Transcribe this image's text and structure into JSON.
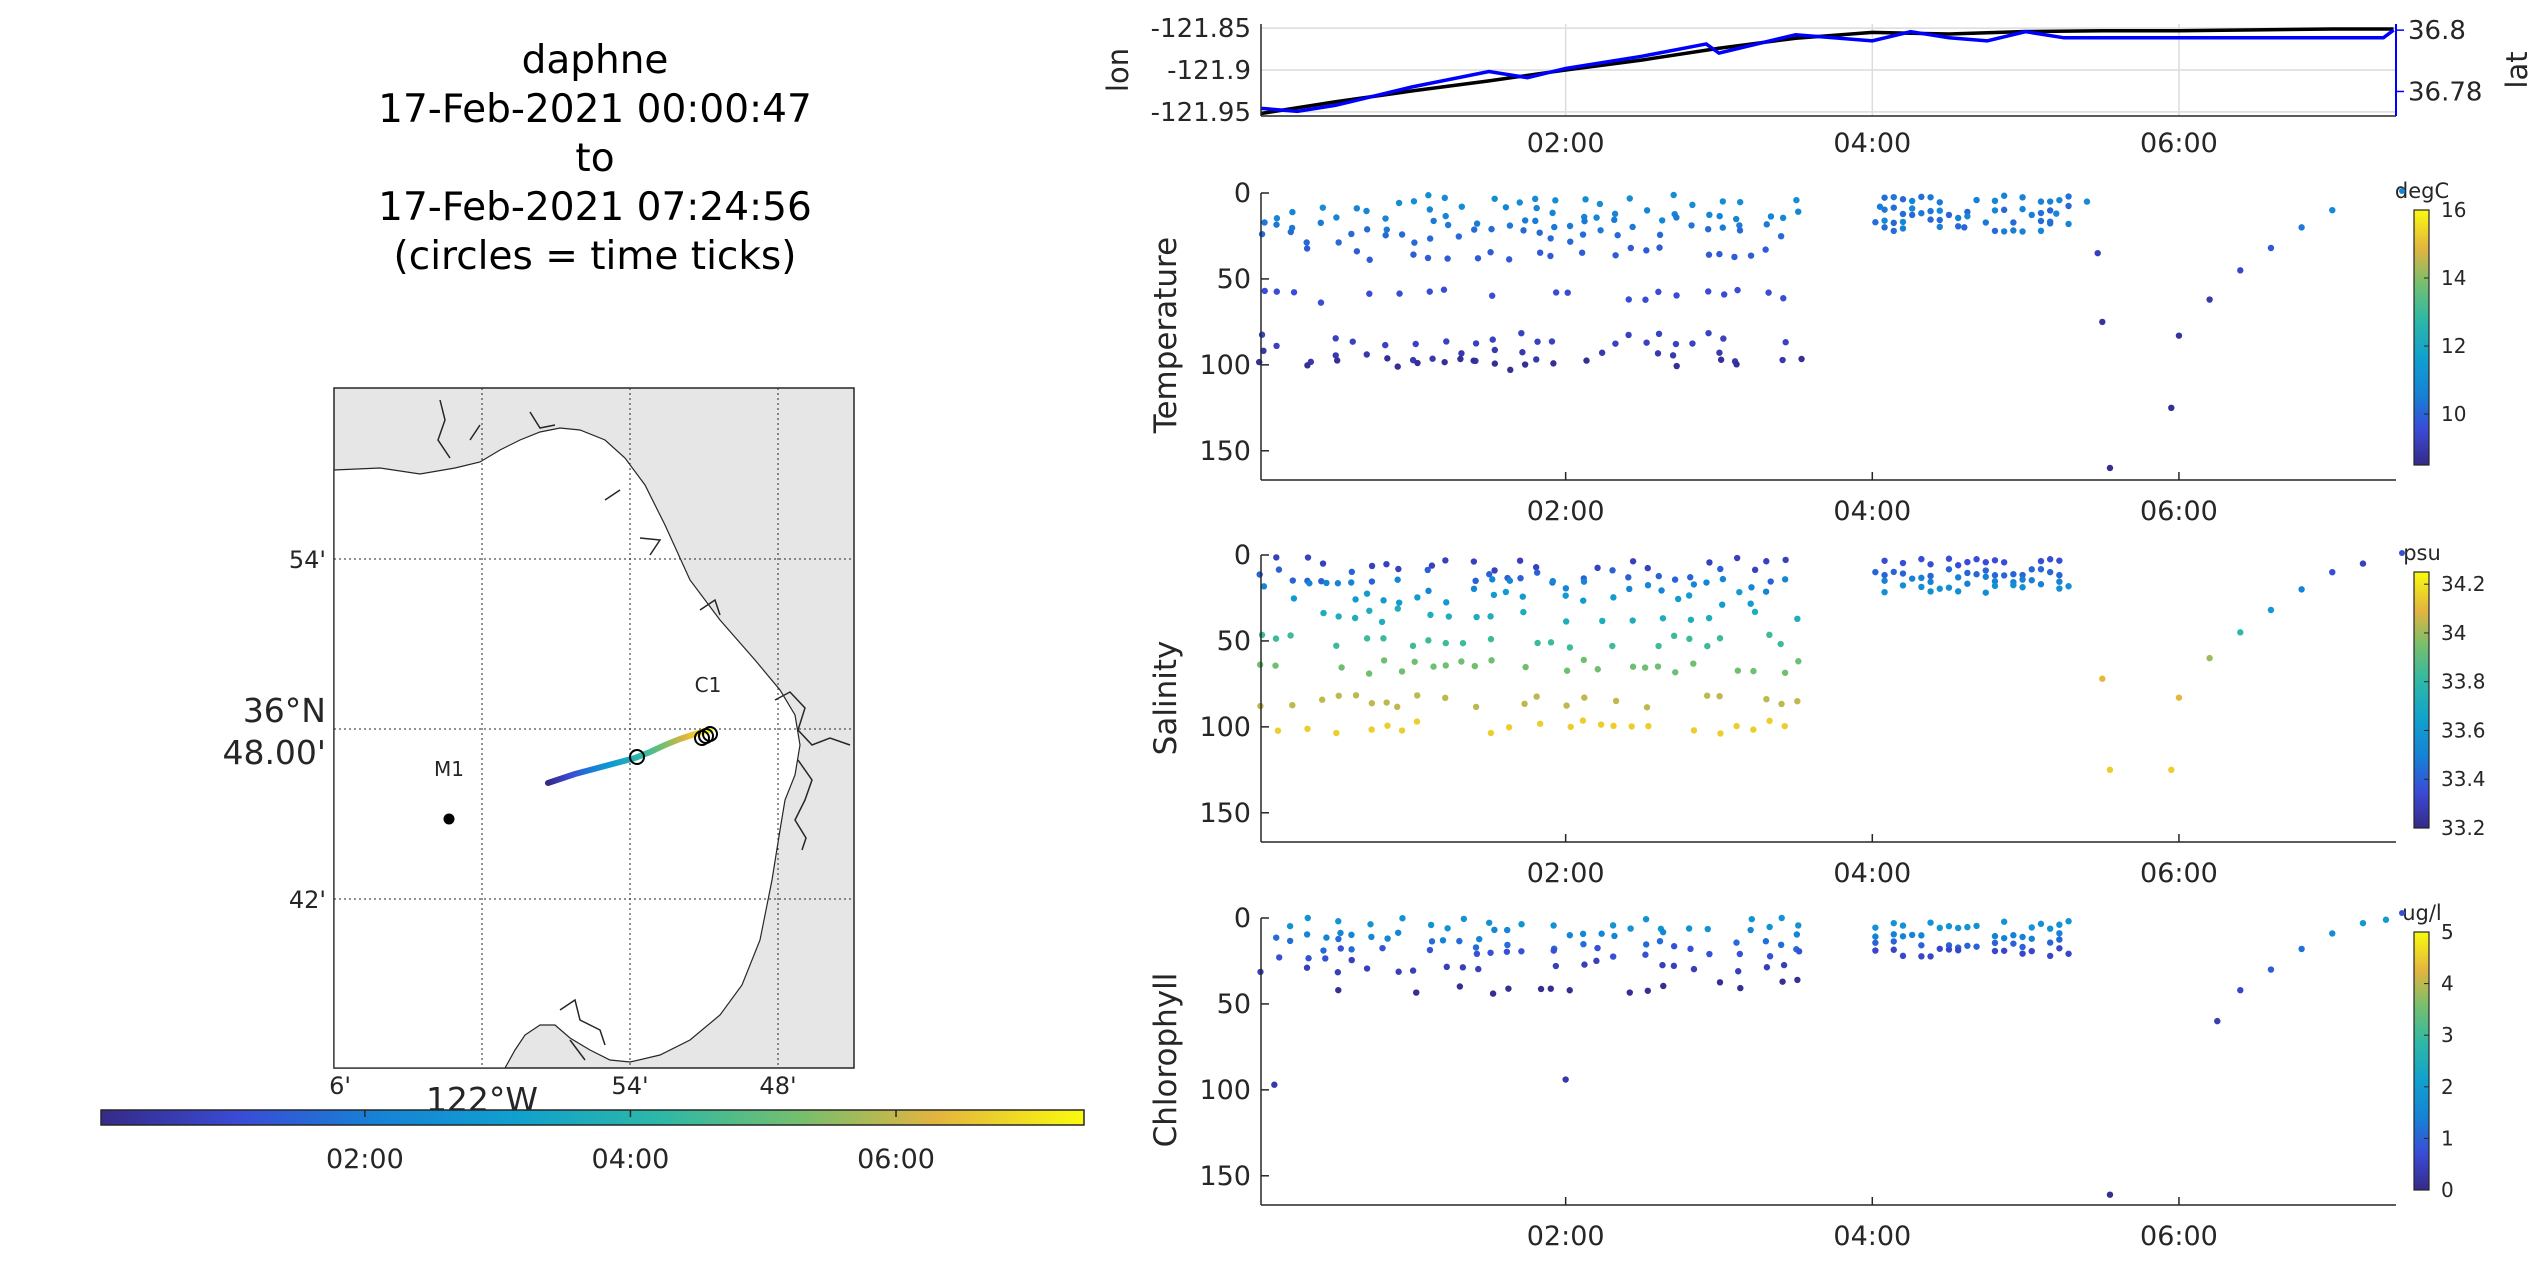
{
  "title_lines": [
    "daphne",
    "17-Feb-2021 00:00:47",
    "to",
    "17-Feb-2021 07:24:56",
    "(circles = time ticks)"
  ],
  "chart_data": [
    {
      "type": "line",
      "panel": "position-timeseries",
      "x_type": "time",
      "xlim": [
        "00:00:47",
        "07:24:56"
      ],
      "xticks": [
        "02:00",
        "04:00",
        "06:00"
      ],
      "ylabel": "lon",
      "ylabel_right": "lat",
      "ylim": [
        -121.955,
        -121.845
      ],
      "yticks": [
        "-121.85",
        "-121.9",
        "-121.95"
      ],
      "ylim_right": [
        36.772,
        36.802
      ],
      "yticks_right": [
        "36.8",
        "36.78"
      ],
      "grid": true,
      "colors": {
        "lon": "#000000",
        "lat": "#0000ff"
      },
      "series": [
        {
          "axis": "left",
          "x": [
            "00:00:47",
            "00:30",
            "01:00",
            "01:30",
            "02:00",
            "02:30",
            "03:00",
            "03:30",
            "04:00",
            "04:30",
            "05:00",
            "05:30",
            "06:00",
            "06:30",
            "07:00",
            "07:24"
          ],
          "y": [
            -121.952,
            -121.938,
            -121.925,
            -121.913,
            -121.9,
            -121.888,
            -121.874,
            -121.862,
            -121.855,
            -121.857,
            -121.854,
            -121.853,
            -121.853,
            -121.852,
            -121.851,
            -121.851
          ]
        },
        {
          "axis": "right",
          "x": [
            "00:00:47",
            "00:15",
            "00:30",
            "01:00",
            "01:30",
            "01:45",
            "02:00",
            "02:30",
            "02:55",
            "03:00",
            "03:30",
            "04:00",
            "04:15",
            "04:30",
            "04:45",
            "05:00",
            "05:15",
            "05:30",
            "06:00",
            "06:30",
            "07:00",
            "07:20",
            "07:24"
          ],
          "y": [
            36.7745,
            36.7735,
            36.7755,
            36.7815,
            36.7865,
            36.7845,
            36.7875,
            36.7915,
            36.7955,
            36.7925,
            36.7985,
            36.7965,
            36.7995,
            36.7975,
            36.7965,
            36.7995,
            36.7975,
            36.7975,
            36.7975,
            36.7975,
            36.7975,
            36.7975,
            36.8
          ]
        }
      ]
    },
    {
      "type": "scatter",
      "panel": "temperature",
      "ylabel": "Temperature",
      "y_reversed": true,
      "ylim": [
        0,
        167
      ],
      "yticks": [
        0,
        50,
        100,
        150
      ],
      "xticks": [
        "02:00",
        "04:00",
        "06:00"
      ],
      "colorbar": {
        "label": "degC",
        "range": [
          8.5,
          16
        ],
        "ticks": [
          10,
          12,
          14,
          16
        ]
      },
      "profiles_pattern": {
        "t_start": 0.0,
        "t_end": 3.58,
        "profile_spacing_hours": 0.1,
        "depths": [
          5,
          12,
          18,
          25,
          35,
          60,
          85,
          95,
          100
        ],
        "value_range": [
          8.7,
          11.0
        ]
      },
      "points": [
        {
          "t": 4.05,
          "depth": 8,
          "v": 10.5
        },
        {
          "t": 4.6,
          "depth": 20,
          "v": 10.1
        },
        {
          "t": 5.2,
          "depth": 12,
          "v": 10.8
        },
        {
          "t": 5.4,
          "depth": 5,
          "v": 10.9
        },
        {
          "t": 5.47,
          "depth": 35,
          "v": 9.2
        },
        {
          "t": 5.5,
          "depth": 75,
          "v": 8.8
        },
        {
          "t": 5.55,
          "depth": 160,
          "v": 8.6
        },
        {
          "t": 5.95,
          "depth": 125,
          "v": 8.7
        },
        {
          "t": 6.0,
          "depth": 83,
          "v": 8.8
        },
        {
          "t": 6.2,
          "depth": 62,
          "v": 9.0
        },
        {
          "t": 6.4,
          "depth": 45,
          "v": 9.4
        },
        {
          "t": 6.6,
          "depth": 32,
          "v": 9.8
        },
        {
          "t": 6.8,
          "depth": 20,
          "v": 10.4
        },
        {
          "t": 7.0,
          "depth": 10,
          "v": 10.8
        }
      ]
    },
    {
      "type": "scatter",
      "panel": "salinity",
      "ylabel": "Salinity",
      "y_reversed": true,
      "ylim": [
        0,
        167
      ],
      "yticks": [
        0,
        50,
        100,
        150
      ],
      "xticks": [
        "02:00",
        "04:00",
        "06:00"
      ],
      "colorbar": {
        "label": "psu",
        "range": [
          33.2,
          34.25
        ],
        "ticks": [
          33.2,
          33.4,
          33.6,
          33.8,
          34,
          34.2
        ]
      },
      "profiles_pattern": {
        "t_start": 0.0,
        "t_end": 3.58,
        "profile_spacing_hours": 0.1,
        "depths": [
          5,
          12,
          18,
          25,
          35,
          50,
          65,
          85,
          100
        ],
        "value_range": [
          33.3,
          34.15
        ]
      },
      "points": [
        {
          "t": 5.5,
          "depth": 72,
          "v": 34.1
        },
        {
          "t": 5.55,
          "depth": 125,
          "v": 34.15
        },
        {
          "t": 5.95,
          "depth": 125,
          "v": 34.15
        },
        {
          "t": 6.0,
          "depth": 83,
          "v": 34.1
        },
        {
          "t": 6.2,
          "depth": 60,
          "v": 34.0
        },
        {
          "t": 6.4,
          "depth": 45,
          "v": 33.8
        },
        {
          "t": 6.6,
          "depth": 32,
          "v": 33.6
        },
        {
          "t": 6.8,
          "depth": 20,
          "v": 33.5
        },
        {
          "t": 7.0,
          "depth": 10,
          "v": 33.35
        },
        {
          "t": 7.2,
          "depth": 5,
          "v": 33.3
        }
      ]
    },
    {
      "type": "scatter",
      "panel": "chlorophyll",
      "ylabel": "Chlorophyll",
      "y_reversed": true,
      "ylim": [
        0,
        167
      ],
      "yticks": [
        0,
        50,
        100,
        150
      ],
      "xticks": [
        "02:00",
        "04:00",
        "06:00"
      ],
      "colorbar": {
        "label": "ug/l",
        "range": [
          0,
          5
        ],
        "ticks": [
          0,
          1,
          2,
          3,
          4,
          5
        ]
      },
      "profiles_pattern": {
        "t_start": 0.0,
        "t_end": 3.58,
        "profile_spacing_hours": 0.1,
        "depths": [
          3,
          10,
          15,
          20,
          28,
          40
        ],
        "value_range": [
          0.1,
          1.8
        ]
      },
      "points": [
        {
          "t": 0.1,
          "depth": 97,
          "v": 0.3
        },
        {
          "t": 2.0,
          "depth": 94,
          "v": 0.3
        },
        {
          "t": 5.55,
          "depth": 161,
          "v": 0.1
        },
        {
          "t": 6.25,
          "depth": 60,
          "v": 0.4
        },
        {
          "t": 6.4,
          "depth": 42,
          "v": 0.6
        },
        {
          "t": 6.6,
          "depth": 30,
          "v": 0.9
        },
        {
          "t": 6.8,
          "depth": 18,
          "v": 1.2
        },
        {
          "t": 7.0,
          "depth": 9,
          "v": 1.6
        },
        {
          "t": 7.2,
          "depth": 3,
          "v": 1.9
        },
        {
          "t": 7.35,
          "depth": 1,
          "v": 2.0
        }
      ]
    },
    {
      "type": "map",
      "panel": "track-map",
      "lat_labels": [
        "54'",
        "36°N 48.00'",
        "42'"
      ],
      "lon_labels": [
        "6'",
        "54'",
        "48'"
      ],
      "lon_title": "122°W",
      "markers": [
        {
          "label": "M1"
        },
        {
          "label": "C1"
        }
      ],
      "track_colorbar_ticks": [
        "02:00",
        "04:00",
        "06:00"
      ],
      "colors": {
        "land": "#e6e6e6",
        "sea": "#ffffff",
        "marker": "#000000"
      }
    }
  ]
}
